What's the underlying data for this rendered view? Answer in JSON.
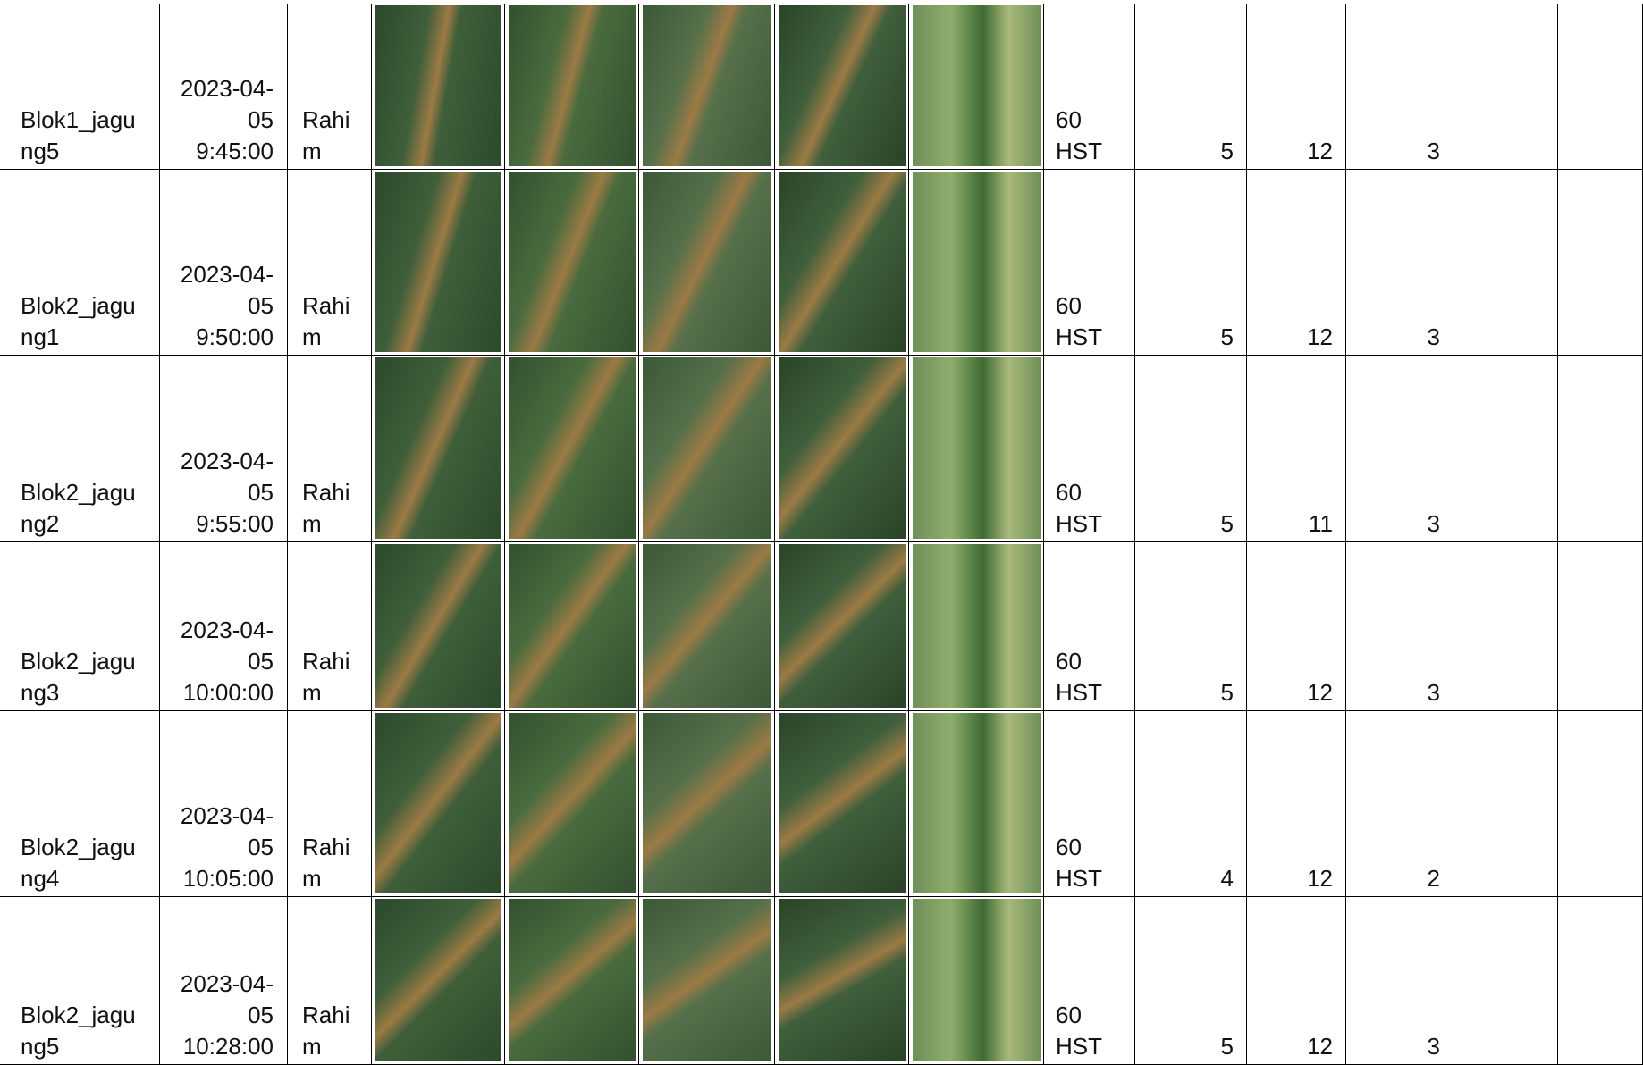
{
  "rows": [
    {
      "id": "Blok1_jagung5",
      "datetime": "2023-04-05 9:45:00",
      "observer": "Rahim",
      "age": "60 HST",
      "values": [
        5,
        12,
        3
      ]
    },
    {
      "id": "Blok2_jagung1",
      "datetime": "2023-04-05 9:50:00",
      "observer": "Rahim",
      "age": "60 HST",
      "values": [
        5,
        12,
        3
      ]
    },
    {
      "id": "Blok2_jagung2",
      "datetime": "2023-04-05 9:55:00",
      "observer": "Rahim",
      "age": "60 HST",
      "values": [
        5,
        11,
        3
      ]
    },
    {
      "id": "Blok2_jagung3",
      "datetime": "2023-04-05 10:00:00",
      "observer": "Rahim",
      "age": "60 HST",
      "values": [
        5,
        12,
        3
      ]
    },
    {
      "id": "Blok2_jagung4",
      "datetime": "2023-04-05 10:05:00",
      "observer": "Rahim",
      "age": "60 HST",
      "values": [
        4,
        12,
        2
      ]
    },
    {
      "id": "Blok2_jagung5",
      "datetime": "2023-04-05 10:28:00",
      "observer": "Rahim",
      "age": "60 HST",
      "values": [
        5,
        12,
        3
      ]
    }
  ]
}
